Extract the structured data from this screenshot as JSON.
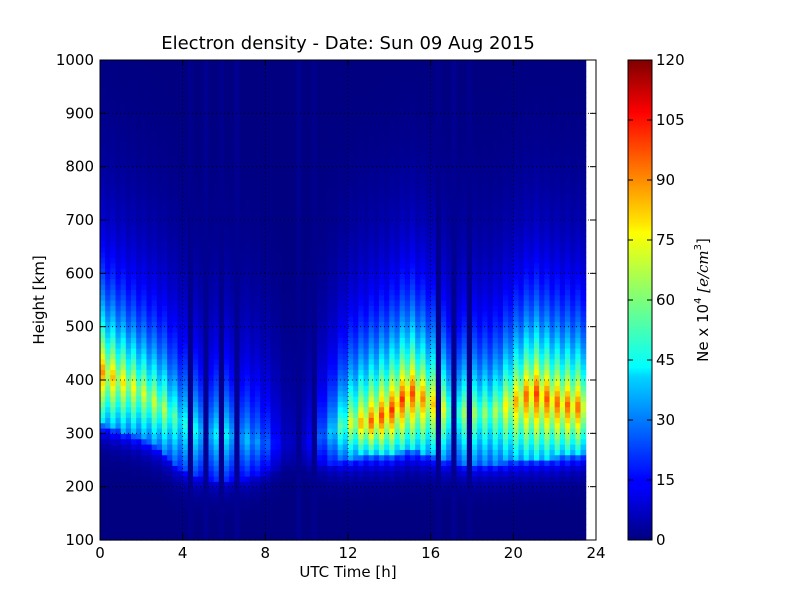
{
  "chart_data": {
    "type": "heatmap",
    "title": "Electron density - Date: Sun 09 Aug 2015",
    "xlabel": "UTC Time [h]",
    "ylabel": "Height [km]",
    "xlim": [
      0,
      24
    ],
    "ylim": [
      100,
      1000
    ],
    "x_ticks": [
      "0",
      "4",
      "8",
      "12",
      "16",
      "20",
      "24"
    ],
    "y_ticks": [
      "100",
      "200",
      "300",
      "400",
      "500",
      "600",
      "700",
      "800",
      "900",
      "1000"
    ],
    "grid": true,
    "colorscale": "jet",
    "colorbar": {
      "label": "Ne x 10",
      "label_exponent": "4",
      "label_units": "[e/cm",
      "label_units_exponent": "3",
      "label_units_close": "]",
      "range": [
        0,
        120
      ],
      "ticks": [
        "0",
        "15",
        "30",
        "45",
        "60",
        "75",
        "90",
        "105",
        "120"
      ]
    },
    "data_time_range_h": [
      0,
      23.5
    ],
    "time_step_h": 0.25,
    "height_step_km": 10,
    "density_profiles": [
      {
        "time_h": 0.0,
        "peak_height_km": 420,
        "peak_density": 90,
        "bottom_height_km": 320
      },
      {
        "time_h": 1.0,
        "peak_height_km": 400,
        "peak_density": 80,
        "bottom_height_km": 305
      },
      {
        "time_h": 2.0,
        "peak_height_km": 380,
        "peak_density": 72,
        "bottom_height_km": 290
      },
      {
        "time_h": 3.0,
        "peak_height_km": 350,
        "peak_density": 70,
        "bottom_height_km": 270
      },
      {
        "time_h": 4.0,
        "peak_height_km": 320,
        "peak_density": 50,
        "bottom_height_km": 230
      },
      {
        "time_h": 5.0,
        "peak_height_km": 300,
        "peak_density": 45,
        "bottom_height_km": 215
      },
      {
        "time_h": 6.0,
        "peak_height_km": 300,
        "peak_density": 45,
        "bottom_height_km": 215
      },
      {
        "time_h": 7.0,
        "peak_height_km": 290,
        "peak_density": 40,
        "bottom_height_km": 215
      },
      {
        "time_h": 8.0,
        "peak_height_km": 280,
        "peak_density": 30,
        "bottom_height_km": 225
      },
      {
        "time_h": 9.0,
        "peak_height_km": 280,
        "peak_density": 8,
        "bottom_height_km": 240
      },
      {
        "time_h": 10.0,
        "peak_height_km": 280,
        "peak_density": 12,
        "bottom_height_km": 240
      },
      {
        "time_h": 11.0,
        "peak_height_km": 300,
        "peak_density": 35,
        "bottom_height_km": 240
      },
      {
        "time_h": 12.0,
        "peak_height_km": 320,
        "peak_density": 70,
        "bottom_height_km": 250
      },
      {
        "time_h": 13.0,
        "peak_height_km": 320,
        "peak_density": 95,
        "bottom_height_km": 260
      },
      {
        "time_h": 14.0,
        "peak_height_km": 340,
        "peak_density": 100,
        "bottom_height_km": 260
      },
      {
        "time_h": 15.0,
        "peak_height_km": 380,
        "peak_density": 100,
        "bottom_height_km": 270
      },
      {
        "time_h": 16.0,
        "peak_height_km": 360,
        "peak_density": 85,
        "bottom_height_km": 260
      },
      {
        "time_h": 17.0,
        "peak_height_km": 340,
        "peak_density": 65,
        "bottom_height_km": 245
      },
      {
        "time_h": 18.0,
        "peak_height_km": 340,
        "peak_density": 65,
        "bottom_height_km": 240
      },
      {
        "time_h": 19.0,
        "peak_height_km": 340,
        "peak_density": 65,
        "bottom_height_km": 240
      },
      {
        "time_h": 20.0,
        "peak_height_km": 360,
        "peak_density": 85,
        "bottom_height_km": 250
      },
      {
        "time_h": 21.0,
        "peak_height_km": 380,
        "peak_density": 100,
        "bottom_height_km": 255
      },
      {
        "time_h": 22.0,
        "peak_height_km": 360,
        "peak_density": 95,
        "bottom_height_km": 255
      },
      {
        "time_h": 23.0,
        "peak_height_km": 350,
        "peak_density": 95,
        "bottom_height_km": 260
      },
      {
        "time_h": 23.5,
        "peak_height_km": 350,
        "peak_density": 90,
        "bottom_height_km": 260
      }
    ],
    "dark_gap_times_h": [
      4.25,
      5.0,
      5.75,
      6.5,
      9.5,
      10.25,
      16.25,
      17.0,
      17.75
    ]
  }
}
